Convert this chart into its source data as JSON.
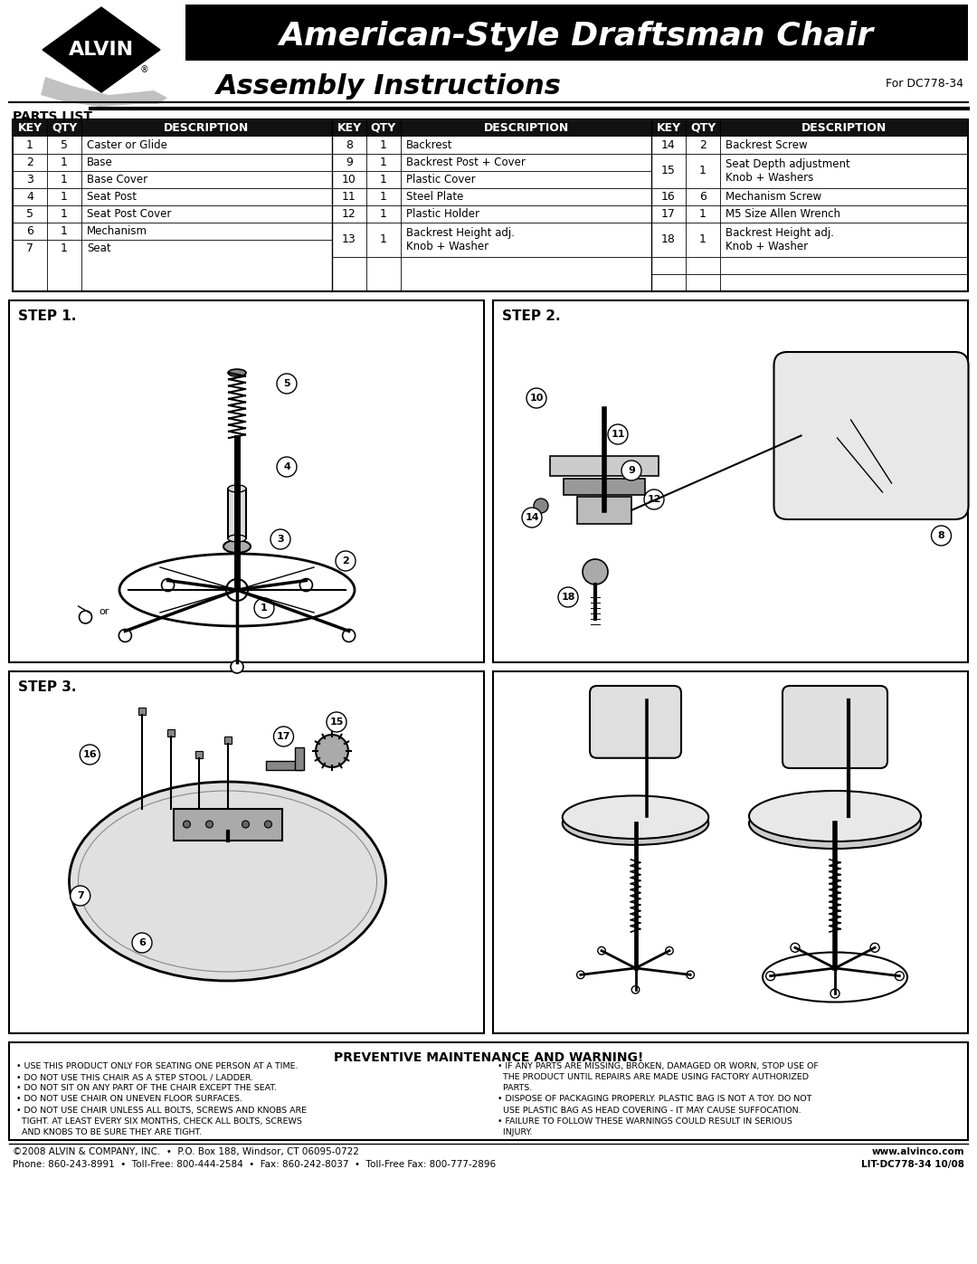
{
  "title_main": "American-Style Draftsman Chair",
  "title_sub": "Assembly Instructions",
  "model": "For DC778-34",
  "parts_list_title": "PARTS LIST",
  "table_col1": [
    [
      "1",
      "5",
      "Caster or Glide"
    ],
    [
      "2",
      "1",
      "Base"
    ],
    [
      "3",
      "1",
      "Base Cover"
    ],
    [
      "4",
      "1",
      "Seat Post"
    ],
    [
      "5",
      "1",
      "Seat Post Cover"
    ],
    [
      "6",
      "1",
      "Mechanism"
    ],
    [
      "7",
      "1",
      "Seat"
    ]
  ],
  "table_col2": [
    [
      "8",
      "1",
      "Backrest"
    ],
    [
      "9",
      "1",
      "Backrest Post + Cover"
    ],
    [
      "10",
      "1",
      "Plastic Cover"
    ],
    [
      "11",
      "1",
      "Steel Plate"
    ],
    [
      "12",
      "1",
      "Plastic Holder"
    ],
    [
      "13",
      "1",
      "Backrest Height adj.\nKnob + Washer"
    ],
    [
      "",
      "",
      ""
    ]
  ],
  "table_col3": [
    [
      "14",
      "2",
      "Backrest Screw"
    ],
    [
      "15",
      "1",
      "Seat Depth adjustment\nKnob + Washers"
    ],
    [
      "16",
      "6",
      "Mechanism Screw"
    ],
    [
      "17",
      "1",
      "M5 Size Allen Wrench"
    ],
    [
      "18",
      "1",
      "Backrest Height adj.\nKnob + Washer"
    ],
    [
      "",
      "",
      ""
    ],
    [
      "",
      "",
      ""
    ]
  ],
  "step1_label": "STEP 1.",
  "step2_label": "STEP 2.",
  "step3_label": "STEP 3.",
  "warning_title": "PREVENTIVE MAINTENANCE AND WARNING!",
  "warnings_left": [
    "• USE THIS PRODUCT ONLY FOR SEATING ONE PERSON AT A TIME.",
    "• DO NOT USE THIS CHAIR AS A STEP STOOL / LADDER.",
    "• DO NOT SIT ON ANY PART OF THE CHAIR EXCEPT THE SEAT.",
    "• DO NOT USE CHAIR ON UNEVEN FLOOR SURFACES.",
    "• DO NOT USE CHAIR UNLESS ALL BOLTS, SCREWS AND KNOBS ARE\n  TIGHT. AT LEAST EVERY SIX MONTHS, CHECK ALL BOLTS, SCREWS\n  AND KNOBS TO BE SURE THEY ARE TIGHT."
  ],
  "warnings_right": [
    "• IF ANY PARTS ARE MISSING, BROKEN, DAMAGED OR WORN, STOP USE OF\n  THE PRODUCT UNTIL REPAIRS ARE MADE USING FACTORY AUTHORIZED\n  PARTS.",
    "• DISPOSE OF PACKAGING PROPERLY. PLASTIC BAG IS NOT A TOY. DO NOT\n  USE PLASTIC BAG AS HEAD COVERING - IT MAY CAUSE SUFFOCATION.",
    "• FAILURE TO FOLLOW THESE WARNINGS COULD RESULT IN SERIOUS\n  INJURY."
  ],
  "footer_left": "©2008 ALVIN & COMPANY, INC.  •  P.O. Box 188, Windsor, CT 06095-0722\nPhone: 860-243-8991  •  Toll-Free: 800-444-2584  •  Fax: 860-242-8037  •  Toll-Free Fax: 800-777-2896",
  "footer_right": "www.alvinco.com\nLIT-DC778-34 10/08"
}
